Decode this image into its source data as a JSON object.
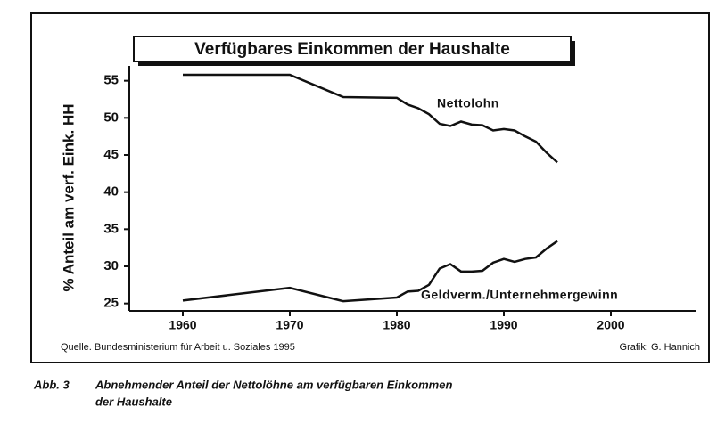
{
  "chart_data": {
    "type": "line",
    "title": "Verfügbares Einkommen der Haushalte",
    "y_label": "% Anteil am verf. Eink. HH",
    "source": "Quelle. Bundesministerium für Arbeit u. Soziales 1995",
    "credit": "Grafik: G. Hannich",
    "caption_label": "Abb. 3",
    "caption": [
      "Abnehmender Anteil der Nettolöhne am verfügbaren Einkommen",
      "der Haushalte"
    ],
    "x": [
      1960,
      1970,
      1975,
      1980,
      1981,
      1982,
      1983,
      1984,
      1985,
      1986,
      1987,
      1988,
      1989,
      1990,
      1991,
      1992,
      1993,
      1994,
      1995
    ],
    "series": [
      {
        "name": "Nettolohn",
        "color": "#111111",
        "values": [
          55.8,
          55.8,
          52.8,
          52.7,
          51.8,
          51.3,
          50.5,
          49.2,
          48.9,
          49.5,
          49.1,
          49.0,
          48.3,
          48.5,
          48.3,
          47.5,
          46.8,
          45.3,
          44.0
        ]
      },
      {
        "name": "Geldverm./Unternehmergewinn",
        "color": "#111111",
        "values": [
          25.4,
          27.1,
          25.3,
          25.8,
          26.6,
          26.7,
          27.5,
          29.7,
          30.3,
          29.3,
          29.3,
          29.4,
          30.5,
          31.0,
          30.6,
          31.0,
          31.2,
          32.4,
          33.4
        ]
      }
    ],
    "xlim": [
      1955,
      2008
    ],
    "xticks": [
      1960,
      1970,
      1980,
      1990,
      2000
    ],
    "ylim": [
      24,
      57
    ],
    "yticks": [
      25,
      30,
      35,
      40,
      45,
      50,
      55
    ],
    "grid": false
  }
}
